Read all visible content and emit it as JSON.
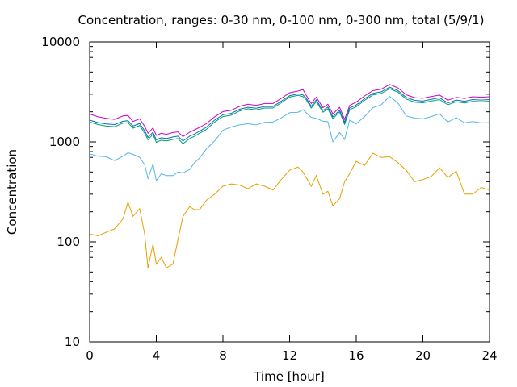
{
  "chart_data": {
    "type": "line",
    "title": "Concentration, ranges: 0-30 nm, 0-100 nm, 0-300 nm, total (5/9/1)",
    "xlabel": "Time [hour]",
    "ylabel": "Concentration",
    "xlim": [
      0,
      24
    ],
    "ylim": [
      10,
      10000
    ],
    "yscale": "log",
    "grid": false,
    "legend": "none",
    "x_ticks": [
      0,
      4,
      8,
      12,
      16,
      20,
      24
    ],
    "x_tick_labels": [
      "0",
      "4",
      "8",
      "12",
      "16",
      "20",
      "24"
    ],
    "y_ticks": [
      10,
      100,
      1000,
      10000
    ],
    "y_tick_labels": [
      "10",
      "100",
      "1000",
      "10000"
    ],
    "x": [
      0,
      0.5,
      1,
      1.5,
      2,
      2.3,
      2.6,
      3,
      3.3,
      3.5,
      3.8,
      4,
      4.3,
      4.6,
      5,
      5.3,
      5.6,
      6,
      6.3,
      6.6,
      7,
      7.5,
      8,
      8.5,
      9,
      9.5,
      10,
      10.5,
      11,
      11.5,
      12,
      12.5,
      12.8,
      13,
      13.3,
      13.6,
      14,
      14.3,
      14.6,
      15,
      15.3,
      15.6,
      16,
      16.5,
      17,
      17.5,
      18,
      18.5,
      19,
      19.5,
      20,
      20.5,
      21,
      21.5,
      22,
      22.5,
      23,
      23.5,
      24
    ],
    "series": [
      {
        "color": "#e69f00",
        "values": [
          120,
          115,
          125,
          135,
          170,
          250,
          180,
          215,
          120,
          55,
          95,
          60,
          70,
          55,
          60,
          105,
          180,
          225,
          210,
          210,
          260,
          300,
          360,
          380,
          370,
          340,
          380,
          360,
          330,
          420,
          520,
          560,
          500,
          440,
          360,
          460,
          300,
          320,
          230,
          270,
          400,
          480,
          640,
          580,
          770,
          700,
          710,
          620,
          520,
          400,
          420,
          450,
          550,
          440,
          510,
          300,
          300,
          350,
          330
        ]
      },
      {
        "color": "#56b4e9",
        "values": [
          760,
          720,
          710,
          650,
          720,
          780,
          750,
          700,
          590,
          430,
          600,
          410,
          480,
          460,
          460,
          500,
          490,
          530,
          620,
          690,
          850,
          1020,
          1310,
          1410,
          1480,
          1520,
          1480,
          1570,
          1580,
          1740,
          1960,
          1980,
          2100,
          1960,
          1760,
          1720,
          1610,
          1590,
          1000,
          1240,
          1060,
          1650,
          1520,
          1790,
          2200,
          2350,
          2850,
          2450,
          1820,
          1730,
          1700,
          1790,
          1910,
          1580,
          1750,
          1550,
          1600,
          1550,
          1560
        ]
      },
      {
        "color": "#009e73",
        "values": [
          1580,
          1490,
          1440,
          1420,
          1540,
          1560,
          1370,
          1460,
          1220,
          1050,
          1190,
          990,
          1040,
          1020,
          1060,
          1080,
          960,
          1080,
          1140,
          1220,
          1330,
          1580,
          1790,
          1850,
          2040,
          2140,
          2090,
          2180,
          2180,
          2460,
          2810,
          2920,
          2840,
          2640,
          2180,
          2530,
          1980,
          2140,
          1710,
          2000,
          1500,
          2090,
          2250,
          2600,
          2950,
          3050,
          3400,
          3150,
          2680,
          2500,
          2460,
          2560,
          2650,
          2350,
          2520,
          2450,
          2550,
          2520,
          2550
        ]
      },
      {
        "color": "#0072b2",
        "values": [
          1650,
          1560,
          1510,
          1490,
          1610,
          1630,
          1440,
          1530,
          1290,
          1110,
          1250,
          1050,
          1100,
          1080,
          1120,
          1140,
          1020,
          1140,
          1200,
          1280,
          1400,
          1650,
          1870,
          1930,
          2120,
          2220,
          2170,
          2260,
          2260,
          2550,
          2900,
          3020,
          2950,
          2740,
          2270,
          2630,
          2060,
          2230,
          1780,
          2080,
          1570,
          2180,
          2340,
          2700,
          3060,
          3170,
          3520,
          3260,
          2780,
          2600,
          2560,
          2660,
          2760,
          2450,
          2620,
          2550,
          2650,
          2620,
          2650
        ]
      },
      {
        "color": "#cc00cc",
        "values": [
          1900,
          1780,
          1720,
          1680,
          1820,
          1840,
          1600,
          1700,
          1430,
          1220,
          1380,
          1160,
          1220,
          1190,
          1240,
          1260,
          1130,
          1250,
          1320,
          1400,
          1520,
          1780,
          2010,
          2070,
          2270,
          2380,
          2320,
          2420,
          2420,
          2720,
          3100,
          3220,
          3350,
          2920,
          2420,
          2800,
          2200,
          2380,
          1900,
          2220,
          1680,
          2320,
          2500,
          2880,
          3250,
          3360,
          3750,
          3470,
          2960,
          2770,
          2730,
          2840,
          2940,
          2610,
          2790,
          2720,
          2830,
          2800,
          2830
        ]
      }
    ]
  }
}
